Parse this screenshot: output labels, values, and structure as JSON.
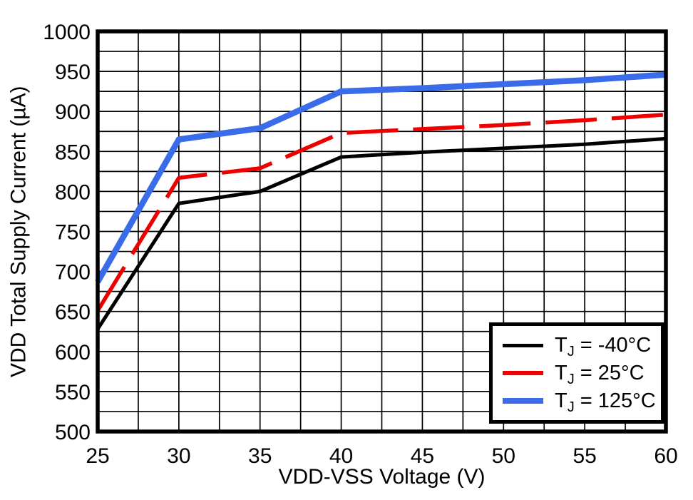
{
  "figure": {
    "background": "#ffffff",
    "frame_color": "#000000",
    "grid_color": "#000000"
  },
  "chart_data": {
    "type": "line",
    "title": "",
    "xlabel": "VDD-VSS Voltage (V)",
    "ylabel": "VDD Total Supply Current (µA)",
    "xlim": [
      25,
      60
    ],
    "ylim": [
      500,
      1000
    ],
    "x_major_step": 5,
    "x_minor_step": 2.5,
    "y_major_step": 50,
    "y_minor_step": 25,
    "grid": "on (minor gridlines every 2.5 V and 25 µA)",
    "legend_position": "lower right",
    "x_tick_labels": [
      "25",
      "30",
      "35",
      "40",
      "45",
      "50",
      "55",
      "60"
    ],
    "y_tick_labels": [
      "500",
      "550",
      "600",
      "650",
      "700",
      "750",
      "800",
      "850",
      "900",
      "950",
      "1000"
    ],
    "x": [
      25,
      30,
      35,
      40,
      45,
      50,
      55,
      60
    ],
    "series": [
      {
        "name": "TJ = -40°C",
        "color": "#000000",
        "style": "solid",
        "width": 5,
        "values": [
          628,
          785,
          800,
          843,
          849,
          854,
          859,
          866
        ]
      },
      {
        "name": "TJ = 25°C",
        "color": "#EE0000",
        "style": "dashed",
        "width": 5.5,
        "values": [
          651,
          817,
          829,
          873,
          878,
          883,
          889,
          896
        ]
      },
      {
        "name": "TJ = 125°C",
        "color": "#3A6BE8",
        "style": "solid",
        "width": 8.5,
        "values": [
          687,
          865,
          879,
          925,
          929,
          934,
          939,
          946
        ]
      }
    ]
  },
  "legend": {
    "items": [
      {
        "pre": "T",
        "sub": "J",
        "post": " = -40°C"
      },
      {
        "pre": "T",
        "sub": "J",
        "post": " = 25°C"
      },
      {
        "pre": "T",
        "sub": "J",
        "post": " = 125°C"
      }
    ]
  }
}
